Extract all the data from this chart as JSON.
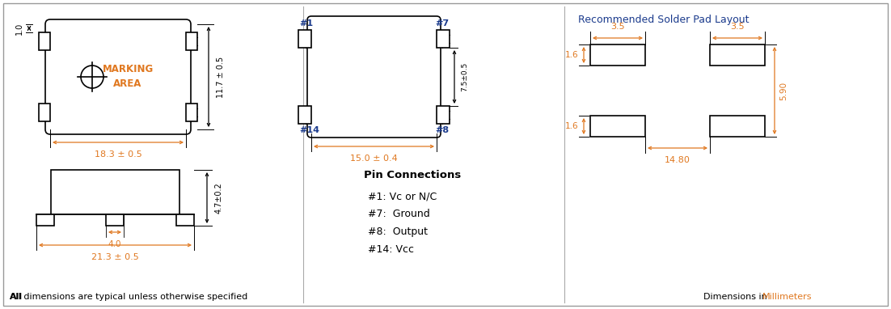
{
  "bg_color": "#ffffff",
  "lc": "#000000",
  "orange": "#e07820",
  "blue": "#1a3a8c",
  "title": "Recommended Solder Pad Layout",
  "bottom_left_bold": "All",
  "bottom_left_rest": " dimensions are typical unless otherwise specified",
  "bottom_right_pre": "Dimensions in ",
  "bottom_right_mm": "Millimeters",
  "pin_title": "Pin Connections",
  "pin1": "#1: Vc or N/C",
  "pin7": "#7:  Ground",
  "pin8": "#8:  Output",
  "pin14": "#14: Vcc",
  "dim_10": "1.0",
  "dim_183": "18.3 ± 0.5",
  "dim_117": "11.7 ± 0.5",
  "dim_213": "21.3 ± 0.5",
  "dim_47": "4.7±0.2",
  "dim_40": "4.0",
  "dim_150": "15.0 ± 0.4",
  "dim_75": "7.5±0.5",
  "dim_35": "3.5",
  "dim_16": "1.6",
  "dim_590": "5.90",
  "dim_1480": "14.80"
}
